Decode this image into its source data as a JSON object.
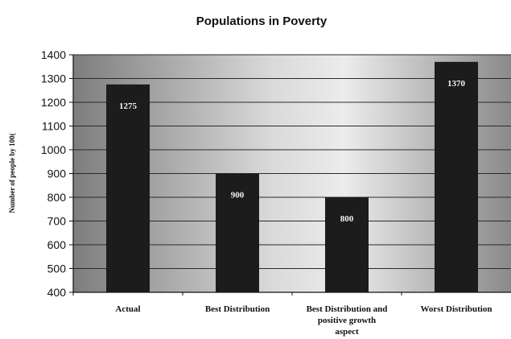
{
  "chart_data": {
    "type": "bar",
    "title": "Populations in Poverty",
    "ylabel": "Number of people by 100(",
    "xlabel": "",
    "categories": [
      [
        "Actual"
      ],
      [
        "Best Distribution"
      ],
      [
        "Best Distribution and",
        "positive growth",
        "aspect"
      ],
      [
        "Worst Distribution"
      ]
    ],
    "values": [
      1275,
      900,
      800,
      1370
    ],
    "data_labels": [
      "1275",
      "900",
      "800",
      "1370"
    ],
    "ylim": [
      400,
      1400
    ],
    "yticks": [
      "400",
      "500",
      "600",
      "700",
      "800",
      "900",
      "1000",
      "1100",
      "1200",
      "1300",
      "1400"
    ],
    "grid": true,
    "legend": "none",
    "colors": {
      "bar": "#1c1c1c",
      "grid": "#2a2a2a",
      "plot_light": "#ededed",
      "plot_dark": "#7d7d7d"
    }
  }
}
